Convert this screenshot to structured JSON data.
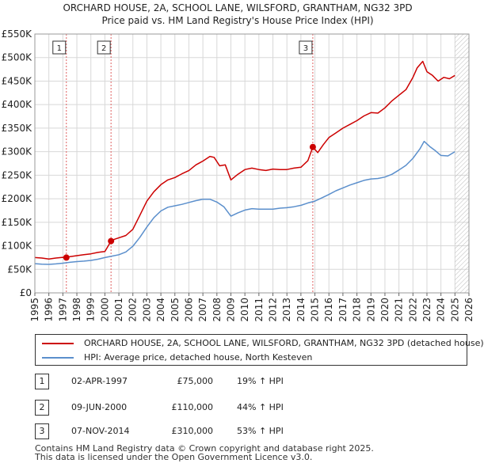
{
  "header": {
    "title_line1": "ORCHARD HOUSE, 2A, SCHOOL LANE, WILSFORD, GRANTHAM, NG32 3PD",
    "title_line2": "Price paid vs. HM Land Registry's House Price Index (HPI)"
  },
  "colors": {
    "property": "#cc0000",
    "hpi": "#5b8fcc",
    "marker_line": "#e06060",
    "grid": "#d8d8d8",
    "hatch": "#bbbbbb"
  },
  "chart_data": {
    "type": "line",
    "title": "Price paid vs. HM Land Registry's House Price Index (HPI)",
    "xlabel": "",
    "ylabel": "",
    "xlim": [
      1995,
      2026
    ],
    "ylim": [
      0,
      550000
    ],
    "grid": true,
    "legend_position": "bottom",
    "x_ticks": [
      "1995",
      "1996",
      "1997",
      "1998",
      "1999",
      "2000",
      "2001",
      "2002",
      "2003",
      "2004",
      "2005",
      "2006",
      "2007",
      "2008",
      "2009",
      "2010",
      "2011",
      "2012",
      "2013",
      "2014",
      "2015",
      "2016",
      "2017",
      "2018",
      "2019",
      "2020",
      "2021",
      "2022",
      "2023",
      "2024",
      "2025",
      "2026"
    ],
    "y_ticks": [
      {
        "value": 0,
        "label": "£0"
      },
      {
        "value": 50000,
        "label": "£50K"
      },
      {
        "value": 100000,
        "label": "£100K"
      },
      {
        "value": 150000,
        "label": "£150K"
      },
      {
        "value": 200000,
        "label": "£200K"
      },
      {
        "value": 250000,
        "label": "£250K"
      },
      {
        "value": 300000,
        "label": "£300K"
      },
      {
        "value": 350000,
        "label": "£350K"
      },
      {
        "value": 400000,
        "label": "£400K"
      },
      {
        "value": 450000,
        "label": "£450K"
      },
      {
        "value": 500000,
        "label": "£500K"
      },
      {
        "value": 550000,
        "label": "£550K"
      }
    ],
    "future_start": 2025.0,
    "series": [
      {
        "name": "ORCHARD HOUSE, 2A, SCHOOL LANE, WILSFORD, GRANTHAM, NG32 3PD (detached house)",
        "color": "#cc0000",
        "x": [
          1995.0,
          1995.5,
          1996.0,
          1996.5,
          1997.0,
          1997.25,
          1997.5,
          1998.0,
          1998.5,
          1999.0,
          1999.5,
          2000.0,
          2000.44,
          2000.7,
          2001.0,
          2001.5,
          2002.0,
          2002.5,
          2003.0,
          2003.5,
          2004.0,
          2004.5,
          2005.0,
          2005.5,
          2006.0,
          2006.5,
          2007.0,
          2007.5,
          2007.8,
          2008.2,
          2008.6,
          2009.0,
          2009.5,
          2010.0,
          2010.5,
          2011.0,
          2011.5,
          2012.0,
          2012.5,
          2013.0,
          2013.5,
          2014.0,
          2014.5,
          2014.85,
          2015.2,
          2015.6,
          2016.0,
          2016.5,
          2017.0,
          2017.5,
          2018.0,
          2018.5,
          2019.0,
          2019.5,
          2020.0,
          2020.5,
          2021.0,
          2021.5,
          2022.0,
          2022.3,
          2022.7,
          2023.0,
          2023.4,
          2023.8,
          2024.2,
          2024.6,
          2025.0
        ],
        "values": [
          75000,
          74000,
          72000,
          74000,
          75500,
          75000,
          77000,
          79000,
          81000,
          83000,
          86000,
          88000,
          110000,
          114000,
          117000,
          122000,
          135000,
          165000,
          195000,
          215000,
          230000,
          240000,
          245000,
          253000,
          260000,
          272000,
          280000,
          290000,
          288000,
          270000,
          272000,
          240000,
          252000,
          262000,
          265000,
          262000,
          260000,
          263000,
          262000,
          262000,
          265000,
          267000,
          281000,
          310000,
          298000,
          315000,
          330000,
          340000,
          350000,
          358000,
          366000,
          376000,
          383000,
          382000,
          393000,
          408000,
          420000,
          432000,
          458000,
          478000,
          492000,
          470000,
          462000,
          450000,
          458000,
          455000,
          462000
        ]
      },
      {
        "name": "HPI: Average price, detached house, North Kesteven",
        "color": "#5b8fcc",
        "x": [
          1995.0,
          1995.5,
          1996.0,
          1996.5,
          1997.0,
          1997.5,
          1998.0,
          1998.5,
          1999.0,
          1999.5,
          2000.0,
          2000.5,
          2001.0,
          2001.5,
          2002.0,
          2002.5,
          2003.0,
          2003.5,
          2004.0,
          2004.5,
          2005.0,
          2005.5,
          2006.0,
          2006.5,
          2007.0,
          2007.5,
          2008.0,
          2008.5,
          2009.0,
          2009.5,
          2010.0,
          2010.5,
          2011.0,
          2011.5,
          2012.0,
          2012.5,
          2013.0,
          2013.5,
          2014.0,
          2014.5,
          2015.0,
          2015.5,
          2016.0,
          2016.5,
          2017.0,
          2017.5,
          2018.0,
          2018.5,
          2019.0,
          2019.5,
          2020.0,
          2020.5,
          2021.0,
          2021.5,
          2022.0,
          2022.5,
          2022.8,
          2023.2,
          2023.6,
          2024.0,
          2024.5,
          2025.0
        ],
        "values": [
          62000,
          61000,
          60500,
          61500,
          63000,
          65000,
          66500,
          67500,
          69000,
          71500,
          75000,
          78000,
          81000,
          87000,
          99000,
          118000,
          140000,
          160000,
          174000,
          182000,
          185000,
          188000,
          192000,
          196000,
          199000,
          199000,
          193000,
          183000,
          163000,
          170000,
          176000,
          179000,
          178000,
          178000,
          178000,
          180000,
          181000,
          183000,
          186000,
          191000,
          195000,
          202000,
          209000,
          217000,
          223000,
          229000,
          234000,
          239000,
          242000,
          243000,
          246000,
          252000,
          261000,
          271000,
          286000,
          306000,
          322000,
          311000,
          302000,
          292000,
          291000,
          300000
        ]
      }
    ],
    "markers": [
      {
        "label": "1",
        "x": 1997.25,
        "value": 75000
      },
      {
        "label": "2",
        "x": 2000.44,
        "value": 110000
      },
      {
        "label": "3",
        "x": 2014.85,
        "value": 310000
      }
    ]
  },
  "legend": {
    "property_label": "ORCHARD HOUSE, 2A, SCHOOL LANE, WILSFORD, GRANTHAM, NG32 3PD (detached house)",
    "hpi_label": "HPI: Average price, detached house, North Kesteven"
  },
  "transactions": [
    {
      "num": "1",
      "date": "02-APR-1997",
      "price": "£75,000",
      "hpi": "19% ↑ HPI"
    },
    {
      "num": "2",
      "date": "09-JUN-2000",
      "price": "£110,000",
      "hpi": "44% ↑ HPI"
    },
    {
      "num": "3",
      "date": "07-NOV-2014",
      "price": "£310,000",
      "hpi": "53% ↑ HPI"
    }
  ],
  "footer": {
    "line1": "Contains HM Land Registry data © Crown copyright and database right 2025.",
    "line2": "This data is licensed under the Open Government Licence v3.0."
  }
}
